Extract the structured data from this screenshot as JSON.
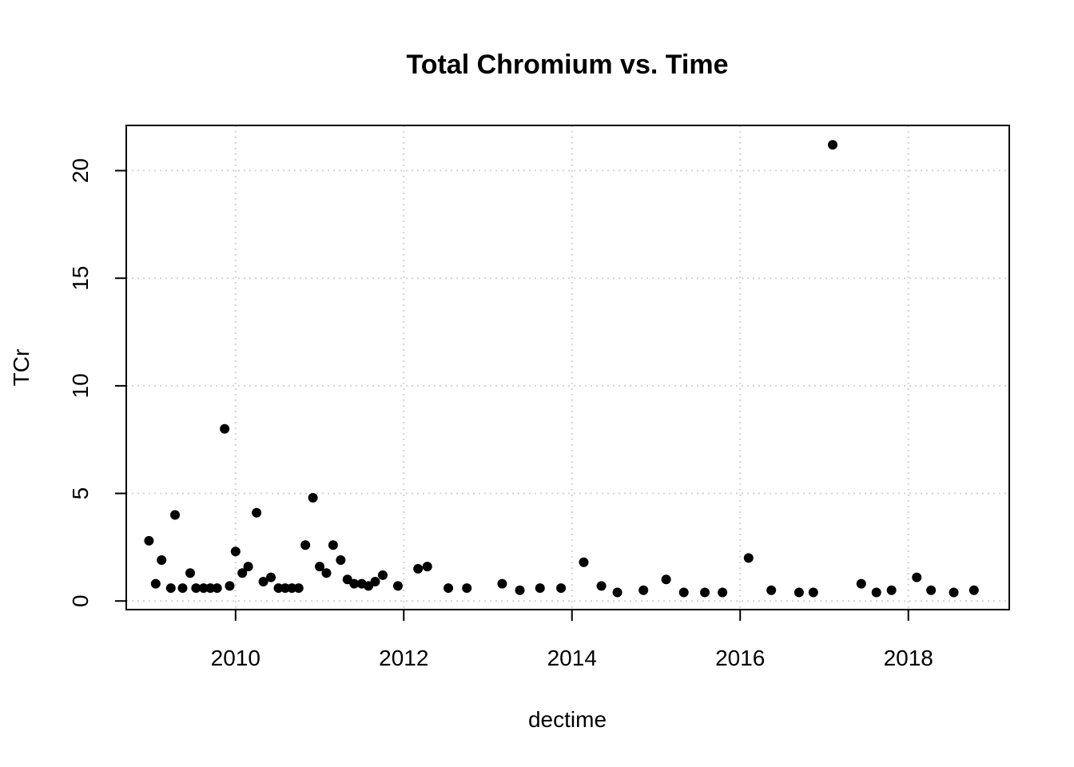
{
  "chart_data": {
    "type": "scatter",
    "title": "Total Chromium vs. Time",
    "xlabel": "dectime",
    "ylabel": "TCr",
    "xlim": [
      2008.7,
      2019.2
    ],
    "ylim": [
      -0.4,
      22.1
    ],
    "xticks": [
      2010,
      2012,
      2014,
      2016,
      2018
    ],
    "yticks": [
      0,
      5,
      10,
      15,
      20
    ],
    "grid": true,
    "series": [
      {
        "x": [
          2008.97,
          2009.05,
          2009.12,
          2009.23,
          2009.28,
          2009.37,
          2009.46,
          2009.53,
          2009.62,
          2009.7,
          2009.78,
          2009.87,
          2009.93,
          2010.0,
          2010.08,
          2010.15,
          2010.25,
          2010.33,
          2010.42,
          2010.51,
          2010.59,
          2010.67,
          2010.75,
          2010.83,
          2010.92,
          2011.0,
          2011.08,
          2011.16,
          2011.25,
          2011.33,
          2011.41,
          2011.5,
          2011.58,
          2011.66,
          2011.75,
          2011.93,
          2012.17,
          2012.28,
          2012.53,
          2012.75,
          2013.17,
          2013.38,
          2013.62,
          2013.87,
          2014.14,
          2014.35,
          2014.54,
          2014.85,
          2015.12,
          2015.33,
          2015.58,
          2015.79,
          2016.1,
          2016.37,
          2016.7,
          2016.87,
          2017.1,
          2017.44,
          2017.62,
          2017.8,
          2018.1,
          2018.27,
          2018.54,
          2018.78
        ],
        "y": [
          2.8,
          0.8,
          1.9,
          0.6,
          4.0,
          0.6,
          1.3,
          0.6,
          0.6,
          0.6,
          0.6,
          8.0,
          0.7,
          2.3,
          1.3,
          1.6,
          4.1,
          0.9,
          1.1,
          0.6,
          0.6,
          0.6,
          0.6,
          2.6,
          4.8,
          1.6,
          1.3,
          2.6,
          1.9,
          1.0,
          0.8,
          0.8,
          0.7,
          0.9,
          1.2,
          0.7,
          1.5,
          1.6,
          0.6,
          0.6,
          0.8,
          0.5,
          0.6,
          0.6,
          1.8,
          0.7,
          0.4,
          0.5,
          1.0,
          0.4,
          0.4,
          0.4,
          2.0,
          0.5,
          0.4,
          0.4,
          21.2,
          0.8,
          0.4,
          0.5,
          1.1,
          0.5,
          0.4,
          0.5
        ]
      }
    ]
  },
  "style": {
    "point_color": "#000000",
    "grid_color": "#d3d3d3",
    "axis_color": "#000000"
  }
}
